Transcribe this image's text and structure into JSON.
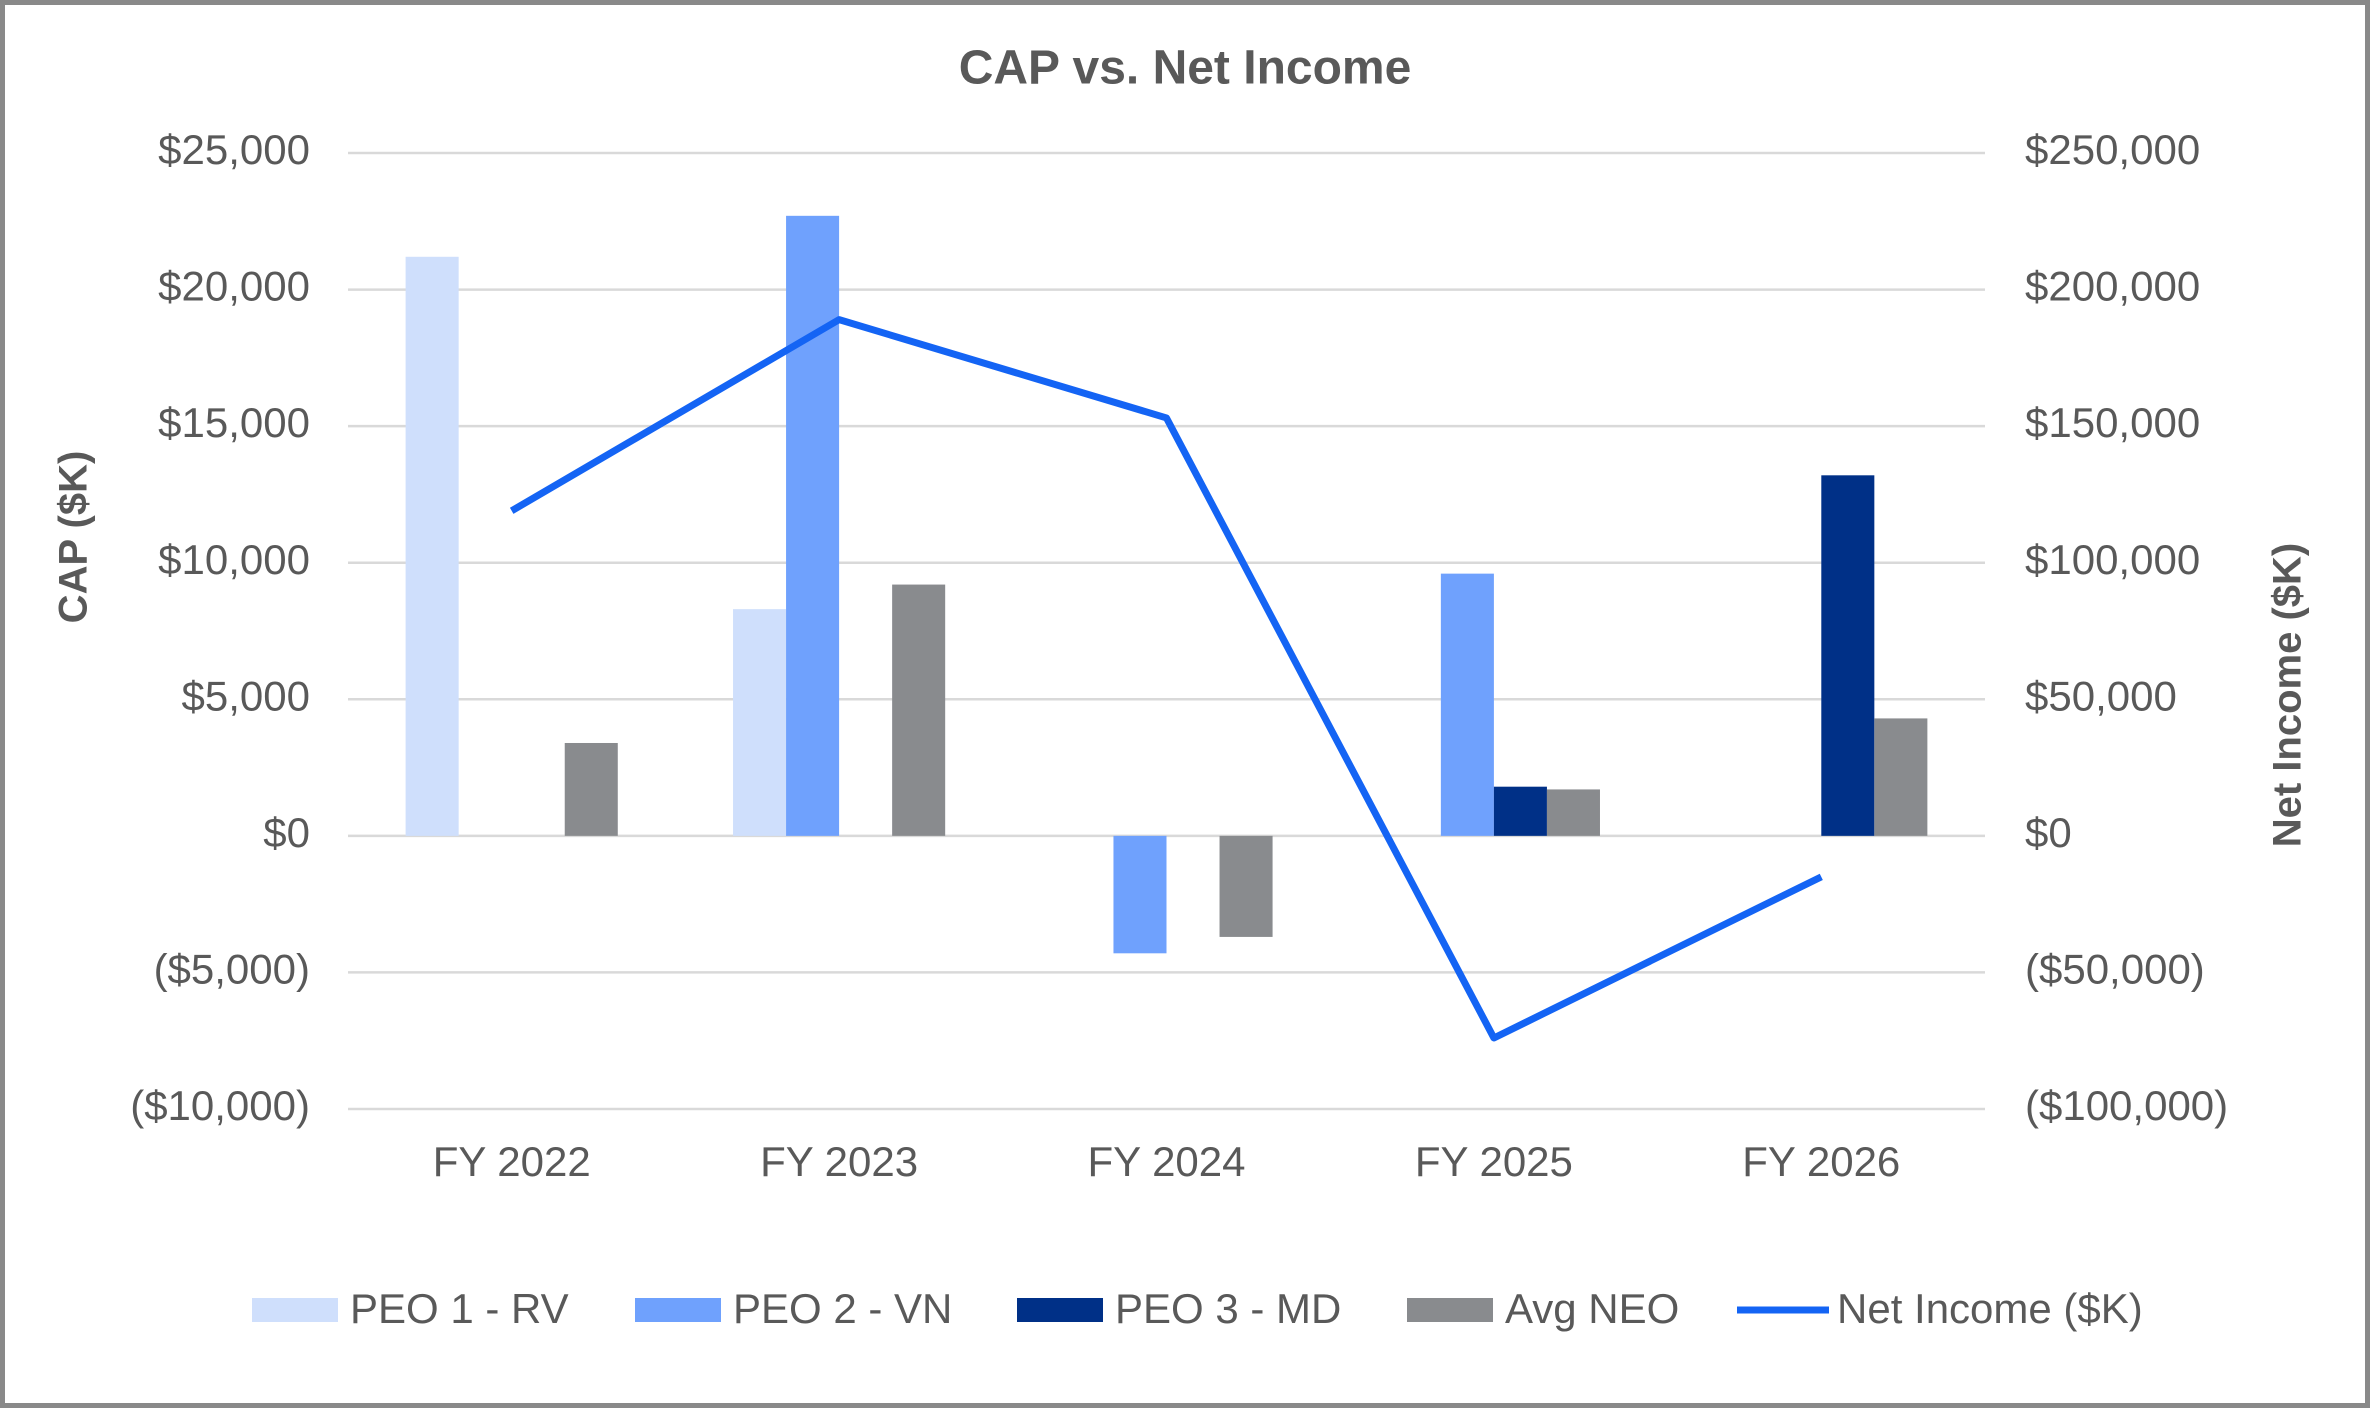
{
  "chart_data": {
    "type": "bar",
    "title": "CAP vs. Net Income",
    "y_label": "CAP ($K)",
    "y2_label": "Net Income ($K)",
    "categories": [
      "FY 2022",
      "FY 2023",
      "FY 2024",
      "FY 2025",
      "FY 2026"
    ],
    "series": [
      {
        "name": "PEO 1 - RV",
        "color": "#cfdffc",
        "values": [
          21200,
          8300,
          null,
          null,
          null
        ]
      },
      {
        "name": "PEO 2 - VN",
        "color": "#6fa1fd",
        "values": [
          null,
          22700,
          -4300,
          9600,
          null
        ]
      },
      {
        "name": "PEO 3 - MD",
        "color": "#003087",
        "values": [
          null,
          null,
          null,
          1800,
          13200
        ]
      },
      {
        "name": "Avg NEO",
        "color": "#898b8e",
        "values": [
          3400,
          9200,
          -3700,
          1700,
          4300
        ]
      },
      {
        "name": "Net Income ($K)",
        "color": "#1464f4",
        "type": "line",
        "axis": "y2",
        "values": [
          119000,
          189000,
          153000,
          -74000,
          -15000
        ]
      }
    ],
    "ylim": [
      -10000,
      25000
    ],
    "yticks": [
      {
        "value": -10000,
        "label": "($10,000)"
      },
      {
        "value": -5000,
        "label": "($5,000)"
      },
      {
        "value": 0,
        "label": "$0"
      },
      {
        "value": 5000,
        "label": "$5,000"
      },
      {
        "value": 10000,
        "label": "$10,000"
      },
      {
        "value": 15000,
        "label": "$15,000"
      },
      {
        "value": 20000,
        "label": "$20,000"
      },
      {
        "value": 25000,
        "label": "$25,000"
      }
    ],
    "y2lim": [
      -100000,
      250000
    ],
    "y2ticks": [
      {
        "value": -100000,
        "label": "($100,000)"
      },
      {
        "value": -50000,
        "label": "($50,000)"
      },
      {
        "value": 0,
        "label": "$0"
      },
      {
        "value": 50000,
        "label": "$50,000"
      },
      {
        "value": 100000,
        "label": "$100,000"
      },
      {
        "value": 150000,
        "label": "$150,000"
      },
      {
        "value": 200000,
        "label": "$200,000"
      },
      {
        "value": 250000,
        "label": "$250,000"
      }
    ],
    "grid": true,
    "legend": "bottom"
  }
}
